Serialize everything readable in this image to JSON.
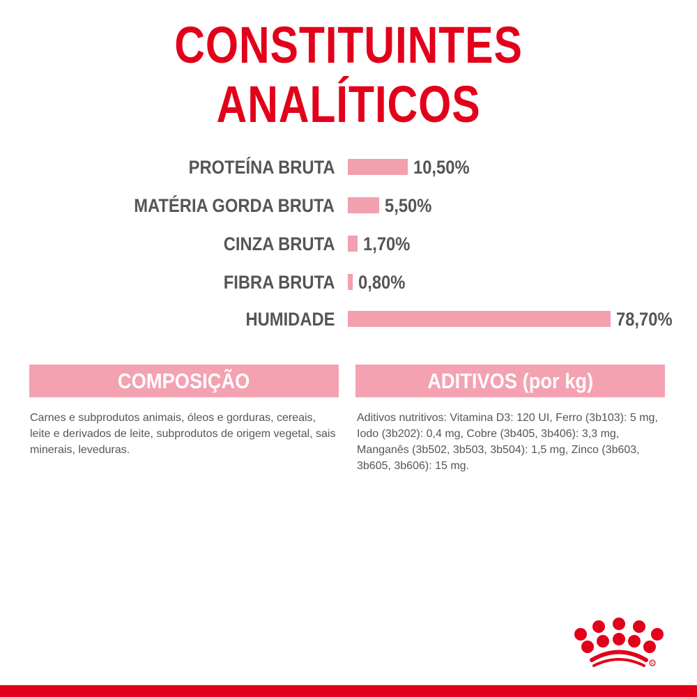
{
  "title": "CONSTITUINTES ANALÍTICOS",
  "chart_data": {
    "type": "bar",
    "orientation": "horizontal",
    "categories": [
      "PROTEÍNA BRUTA",
      "MATÉRIA GORDA BRUTA",
      "CINZA BRUTA",
      "FIBRA BRUTA",
      "HUMIDADE"
    ],
    "values": [
      10.5,
      5.5,
      1.7,
      0.8,
      78.7
    ],
    "data_labels": [
      "10,50%",
      "5,50%",
      "1,70%",
      "0,80%",
      "78,70%"
    ],
    "unit": "%",
    "bar_color": "#f29fae",
    "grid": false
  },
  "composition": {
    "header": "COMPOSIÇÃO",
    "text": "Carnes e subprodutos animais, óleos e gorduras, cereais, leite e derivados de leite, subprodutos de origem vegetal, sais minerais, leveduras."
  },
  "additives": {
    "header": "ADITIVOS (por kg)",
    "text": "Aditivos nutritivos: Vitamina D3: 120 UI, Ferro (3b103): 5 mg, Iodo (3b202): 0,4 mg, Cobre (3b405, 3b406): 3,3 mg, Manganês (3b502, 3b503, 3b504): 1,5 mg, Zinco (3b603, 3b605, 3b606): 15 mg."
  },
  "logo": "royal-canin-crown-logo",
  "colors": {
    "brand_red": "#e2001a",
    "pink": "#f4a1b1",
    "text_gray": "#555555"
  }
}
